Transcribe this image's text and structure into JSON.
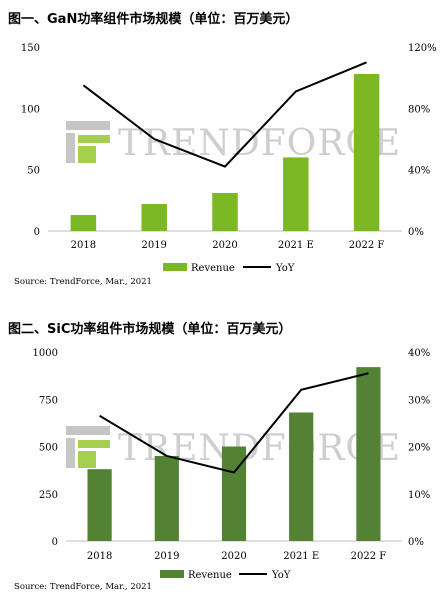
{
  "charts": [
    {
      "title": "图一、GaN功率组件市场规模（单位：百万美元）",
      "source": "Source: TrendForce, Mar., 2021",
      "watermark": "TRENDFORCE",
      "colors": {
        "bar": "#7cb724",
        "line": "#000000"
      },
      "chart_data": {
        "type": "bar",
        "categories": [
          "2018",
          "2019",
          "2020",
          "2021 E",
          "2022 F"
        ],
        "series": [
          {
            "name": "Revenue",
            "type": "bar",
            "axis": "left",
            "values": [
              13,
              22,
              31,
              60,
              128
            ]
          },
          {
            "name": "YoY",
            "type": "line",
            "axis": "right",
            "values": [
              95,
              60,
              42,
              91,
              110
            ]
          }
        ],
        "ylim": [
          0,
          150
        ],
        "yticks": [
          "0",
          "50",
          "100",
          "150"
        ],
        "y2lim": [
          0,
          120
        ],
        "y2ticks": [
          "0%",
          "40%",
          "80%",
          "120%"
        ],
        "legend_position": "bottom"
      }
    },
    {
      "title": "图二、SiC功率组件市场规模（单位：百万美元）",
      "source": "Source: TrendForce, Mar., 2021",
      "watermark": "TRENDFORCE",
      "colors": {
        "bar": "#548235",
        "line": "#000000"
      },
      "chart_data": {
        "type": "bar",
        "categories": [
          "2018",
          "2019",
          "2020",
          "2021 E",
          "2022 F"
        ],
        "series": [
          {
            "name": "Revenue",
            "type": "bar",
            "axis": "left",
            "values": [
              380,
              450,
              500,
              680,
              920
            ]
          },
          {
            "name": "YoY",
            "type": "line",
            "axis": "right",
            "values": [
              26.5,
              18,
              14.5,
              32,
              35.5
            ]
          }
        ],
        "ylim": [
          0,
          1000
        ],
        "yticks": [
          "0",
          "250",
          "500",
          "750",
          "1000"
        ],
        "y2lim": [
          0,
          40
        ],
        "y2ticks": [
          "0%",
          "10%",
          "20%",
          "30%",
          "40%"
        ],
        "legend_position": "bottom"
      }
    }
  ]
}
